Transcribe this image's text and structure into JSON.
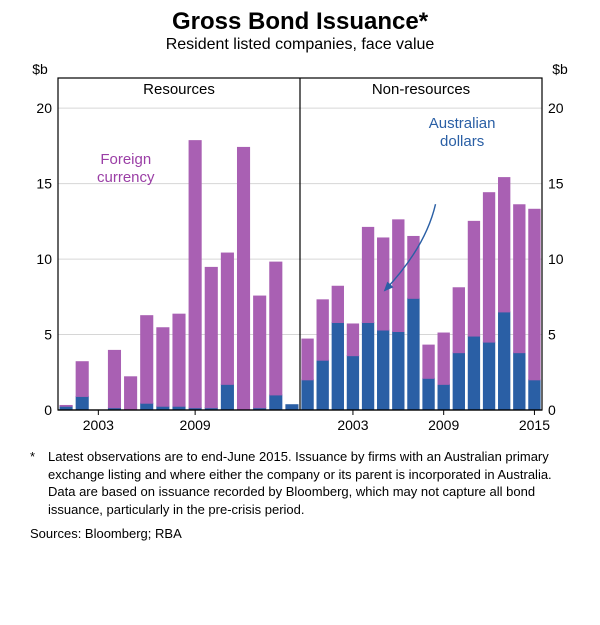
{
  "title": "Gross Bond Issuance*",
  "subtitle": "Resident listed companies, face value",
  "footnote_mark": "*",
  "footnote": "Latest observations are to end-June 2015. Issuance by firms with an Australian primary exchange listing and where either the company or its parent is incorporated in Australia. Data are based on issuance recorded by Bloomberg, which may not capture all bond issuance, particularly in the pre-crisis period.",
  "sources": "Sources:  Bloomberg; RBA",
  "y_axis_label_left": "$b",
  "y_axis_label_right": "$b",
  "panel_labels": [
    "Resources",
    "Non-resources"
  ],
  "series_label_foreign": "Foreign currency",
  "series_label_aud": "Australian dollars",
  "colors": {
    "foreign": "#a960b3",
    "aud": "#2a5fa5",
    "axis": "#000000",
    "grid": "#d6d6d6",
    "background": "#ffffff",
    "panel_divider": "#000000",
    "label_foreign": "#9b3fa6",
    "label_aud": "#2a5fa5"
  },
  "chart": {
    "ylim": [
      0,
      22
    ],
    "yticks": [
      0,
      5,
      10,
      15,
      20
    ],
    "x_tick_years_left": [
      2003,
      2009
    ],
    "x_tick_years_right": [
      2003,
      2009,
      2015
    ],
    "years": [
      2001,
      2002,
      2003,
      2004,
      2005,
      2006,
      2007,
      2008,
      2009,
      2010,
      2011,
      2012,
      2013,
      2014,
      2015
    ],
    "resources": {
      "aud": [
        0.25,
        0.9,
        0.0,
        0.15,
        0.0,
        0.45,
        0.25,
        0.25,
        0.15,
        0.15,
        1.7,
        0.0,
        0.15,
        1.0,
        0.35
      ],
      "foreign": [
        0.05,
        2.3,
        0.0,
        3.8,
        2.2,
        5.8,
        5.2,
        6.1,
        17.7,
        9.3,
        8.7,
        17.4,
        7.4,
        8.8,
        0.0
      ]
    },
    "nonresources": {
      "aud": [
        2.0,
        3.3,
        5.8,
        3.6,
        5.8,
        5.3,
        5.2,
        7.4,
        2.1,
        1.7,
        3.8,
        4.9,
        4.5,
        6.5,
        3.8,
        2.0
      ],
      "foreign": [
        2.7,
        4.0,
        2.4,
        2.1,
        6.3,
        6.1,
        7.4,
        4.1,
        2.2,
        3.4,
        4.3,
        7.6,
        9.9,
        8.9,
        9.8,
        11.3
      ]
    },
    "years_nr": [
      2000,
      2001,
      2002,
      2003,
      2004,
      2005,
      2006,
      2007,
      2008,
      2009,
      2010,
      2011,
      2012,
      2013,
      2014,
      2015
    ],
    "bar_width_ratio": 0.75,
    "axis_fontsize": 14,
    "tick_fontsize": 14,
    "panel_label_fontsize": 15,
    "series_label_fontsize": 15,
    "title_fontsize": 24,
    "subtitle_fontsize": 16
  },
  "arrow": {
    "from": [
      0.78,
      0.62
    ],
    "to": [
      0.675,
      0.36
    ]
  }
}
